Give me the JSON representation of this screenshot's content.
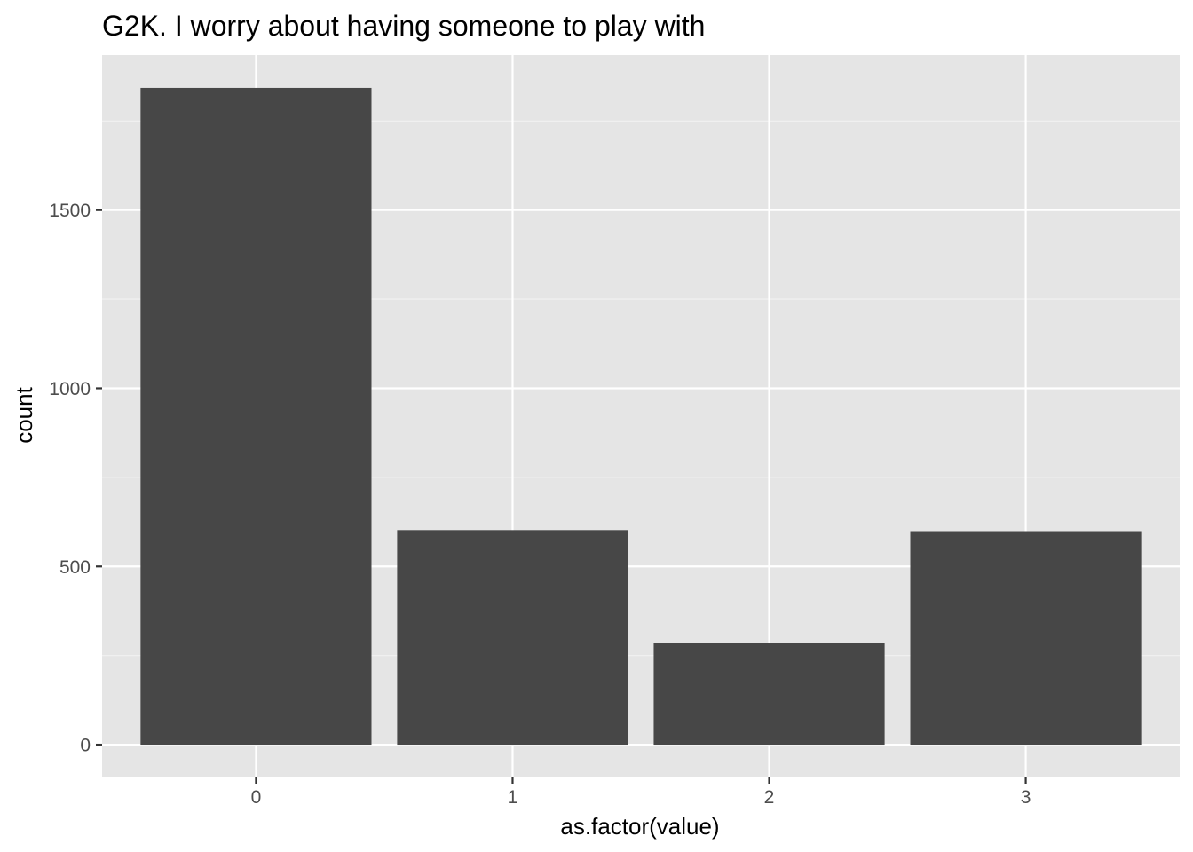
{
  "chart_data": {
    "type": "bar",
    "title": "G2K. I worry about having someone to play with",
    "xlabel": "as.factor(value)",
    "ylabel": "count",
    "categories": [
      "0",
      "1",
      "2",
      "3"
    ],
    "values": [
      1843,
      602,
      286,
      599
    ],
    "ylim": [
      -92,
      1935
    ],
    "y_ticks": [
      0,
      500,
      1000,
      1500
    ],
    "y_tick_labels": [
      "0",
      "500",
      "1000",
      "1500"
    ],
    "grid": true,
    "legend": "none",
    "colors": {
      "panel_background": "#e5e5e5",
      "grid_major": "#ffffff",
      "grid_minor": "#f2f2f2",
      "bar_fill": "#474747",
      "tick_label": "#4d4d4d",
      "axis_tick": "#333333",
      "text": "#000000"
    }
  }
}
